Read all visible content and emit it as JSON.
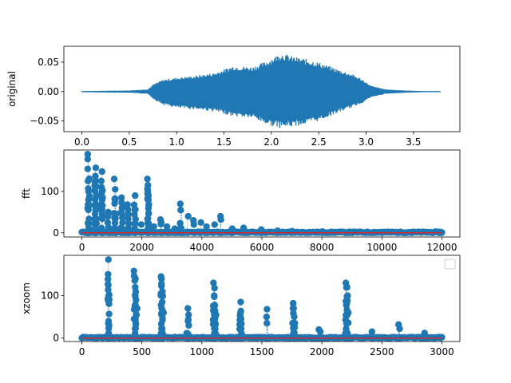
{
  "colors": {
    "series": "#1f77b4",
    "baseline": "#d62728",
    "axis": "#000000"
  },
  "chart_data": [
    {
      "type": "area",
      "ylabel": "original",
      "xlim": [
        -0.19,
        3.99
      ],
      "ylim": [
        -0.068,
        0.077
      ],
      "xticks": [
        0.0,
        0.5,
        1.0,
        1.5,
        2.0,
        2.5,
        3.0,
        3.5
      ],
      "xtick_labels": [
        "0.0",
        "0.5",
        "1.0",
        "1.5",
        "2.0",
        "2.5",
        "3.0",
        "3.5"
      ],
      "yticks": [
        -0.05,
        0.0,
        0.05
      ],
      "ytick_labels": [
        "−0.05",
        "0.00",
        "0.05"
      ],
      "envelope": {
        "x": [
          0.0,
          0.5,
          0.7,
          0.75,
          0.85,
          1.0,
          1.2,
          1.4,
          1.6,
          1.8,
          1.95,
          2.1,
          2.2,
          2.35,
          2.5,
          2.7,
          2.85,
          2.95,
          3.05,
          3.2,
          3.4,
          3.6,
          3.78
        ],
        "upper": [
          0.001,
          0.002,
          0.004,
          0.012,
          0.02,
          0.024,
          0.027,
          0.032,
          0.044,
          0.042,
          0.052,
          0.066,
          0.061,
          0.056,
          0.05,
          0.038,
          0.03,
          0.022,
          0.01,
          0.004,
          0.002,
          0.001,
          0.001
        ],
        "lower": [
          -0.001,
          -0.002,
          -0.004,
          -0.012,
          -0.022,
          -0.028,
          -0.03,
          -0.034,
          -0.042,
          -0.045,
          -0.056,
          -0.062,
          -0.06,
          -0.056,
          -0.05,
          -0.036,
          -0.027,
          -0.02,
          -0.01,
          -0.004,
          -0.002,
          -0.001,
          -0.001
        ]
      }
    },
    {
      "type": "scatter",
      "ylabel": "fft",
      "xlim": [
        -600,
        12600
      ],
      "ylim": [
        -10,
        200
      ],
      "xticks": [
        0,
        2000,
        4000,
        6000,
        8000,
        10000,
        12000
      ],
      "xtick_labels": [
        "0",
        "2000",
        "4000",
        "6000",
        "8000",
        "10000",
        "12000"
      ],
      "yticks": [
        0,
        100
      ],
      "ytick_labels": [
        "0",
        "100"
      ],
      "x_max": 12000,
      "peaks": [
        [
          220,
          190
        ],
        [
          225,
          125
        ],
        [
          230,
          100
        ],
        [
          440,
          157
        ],
        [
          450,
          137
        ],
        [
          460,
          123
        ],
        [
          470,
          90
        ],
        [
          660,
          148
        ],
        [
          670,
          110
        ],
        [
          680,
          85
        ],
        [
          880,
          50
        ],
        [
          890,
          40
        ],
        [
          1100,
          130
        ],
        [
          1110,
          105
        ],
        [
          1120,
          80
        ],
        [
          1320,
          85
        ],
        [
          1330,
          50
        ],
        [
          1540,
          68
        ],
        [
          1550,
          45
        ],
        [
          1760,
          90
        ],
        [
          1770,
          55
        ],
        [
          1980,
          20
        ],
        [
          2200,
          130
        ],
        [
          2205,
          115
        ],
        [
          2210,
          100
        ],
        [
          2220,
          80
        ],
        [
          2420,
          15
        ],
        [
          2640,
          32
        ],
        [
          2650,
          25
        ],
        [
          2860,
          15
        ],
        [
          3080,
          10
        ],
        [
          3300,
          70
        ],
        [
          3320,
          55
        ],
        [
          3520,
          40
        ],
        [
          3740,
          30
        ],
        [
          3960,
          25
        ],
        [
          4180,
          15
        ],
        [
          4400,
          20
        ],
        [
          4620,
          40
        ],
        [
          4640,
          32
        ],
        [
          5000,
          10
        ],
        [
          5400,
          12
        ],
        [
          6000,
          8
        ],
        [
          6500,
          5
        ],
        [
          7000,
          4
        ],
        [
          8000,
          3
        ],
        [
          9000,
          2
        ],
        [
          10000,
          2
        ],
        [
          11000,
          2
        ],
        [
          12000,
          1
        ]
      ],
      "baseline": 0
    },
    {
      "type": "scatter",
      "ylabel": "xzoom",
      "xlim": [
        -150,
        3150
      ],
      "ylim": [
        -8,
        195
      ],
      "xticks": [
        0,
        500,
        1000,
        1500,
        2000,
        2500,
        3000
      ],
      "xtick_labels": [
        "0",
        "500",
        "1000",
        "1500",
        "2000",
        "2500",
        "3000"
      ],
      "yticks": [
        0,
        100
      ],
      "ytick_labels": [
        "0",
        "100"
      ],
      "x_max": 3000,
      "legend": "top-right",
      "peaks": [
        [
          220,
          185
        ],
        [
          222,
          125
        ],
        [
          225,
          100
        ],
        [
          228,
          40
        ],
        [
          440,
          158
        ],
        [
          445,
          140
        ],
        [
          448,
          120
        ],
        [
          452,
          90
        ],
        [
          455,
          70
        ],
        [
          660,
          145
        ],
        [
          665,
          140
        ],
        [
          668,
          110
        ],
        [
          672,
          85
        ],
        [
          675,
          60
        ],
        [
          880,
          70
        ],
        [
          885,
          55
        ],
        [
          888,
          40
        ],
        [
          1100,
          130
        ],
        [
          1105,
          118
        ],
        [
          1108,
          100
        ],
        [
          1112,
          75
        ],
        [
          1115,
          55
        ],
        [
          1320,
          85
        ],
        [
          1325,
          60
        ],
        [
          1328,
          45
        ],
        [
          1540,
          68
        ],
        [
          1545,
          50
        ],
        [
          1548,
          35
        ],
        [
          1760,
          82
        ],
        [
          1765,
          70
        ],
        [
          1768,
          50
        ],
        [
          1772,
          35
        ],
        [
          1980,
          20
        ],
        [
          1985,
          15
        ],
        [
          2200,
          130
        ],
        [
          2205,
          120
        ],
        [
          2208,
          100
        ],
        [
          2212,
          80
        ],
        [
          2215,
          60
        ],
        [
          2420,
          15
        ],
        [
          2640,
          32
        ],
        [
          2645,
          22
        ],
        [
          2860,
          12
        ]
      ],
      "baseline": 0
    }
  ]
}
